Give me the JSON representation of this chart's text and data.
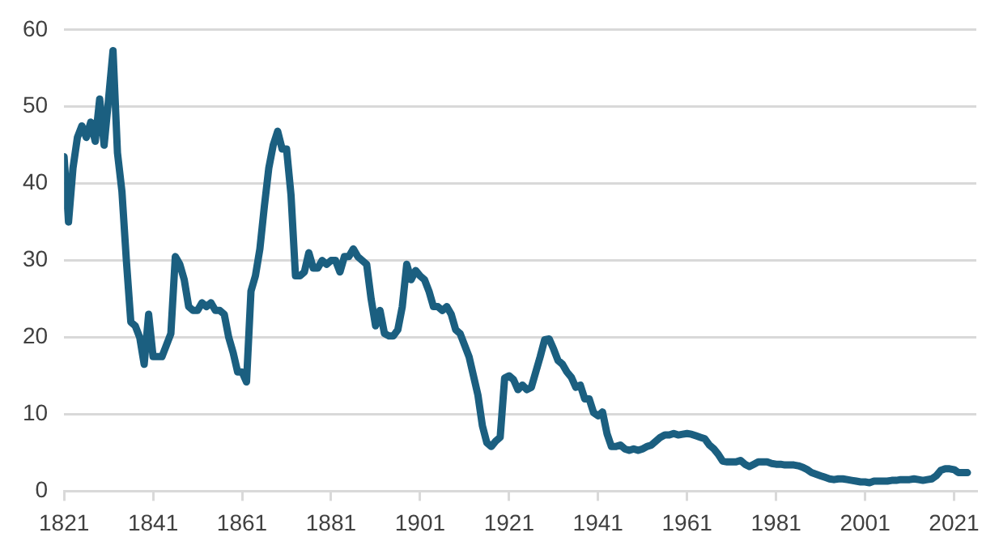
{
  "chart_data": {
    "type": "line",
    "x": [
      1821,
      1822,
      1823,
      1824,
      1825,
      1826,
      1827,
      1828,
      1829,
      1830,
      1831,
      1832,
      1833,
      1834,
      1835,
      1836,
      1837,
      1838,
      1839,
      1840,
      1841,
      1842,
      1843,
      1844,
      1845,
      1846,
      1847,
      1848,
      1849,
      1850,
      1851,
      1852,
      1853,
      1854,
      1855,
      1856,
      1857,
      1858,
      1859,
      1860,
      1861,
      1862,
      1863,
      1864,
      1865,
      1866,
      1867,
      1868,
      1869,
      1870,
      1871,
      1872,
      1873,
      1874,
      1875,
      1876,
      1877,
      1878,
      1879,
      1880,
      1881,
      1882,
      1883,
      1884,
      1885,
      1886,
      1887,
      1888,
      1889,
      1890,
      1891,
      1892,
      1893,
      1894,
      1895,
      1896,
      1897,
      1898,
      1899,
      1900,
      1901,
      1902,
      1903,
      1904,
      1905,
      1906,
      1907,
      1908,
      1909,
      1910,
      1911,
      1912,
      1913,
      1914,
      1915,
      1916,
      1917,
      1918,
      1919,
      1920,
      1921,
      1922,
      1923,
      1924,
      1925,
      1926,
      1927,
      1928,
      1929,
      1930,
      1931,
      1932,
      1933,
      1934,
      1935,
      1936,
      1937,
      1938,
      1939,
      1940,
      1941,
      1942,
      1943,
      1944,
      1945,
      1946,
      1947,
      1948,
      1949,
      1950,
      1951,
      1952,
      1953,
      1954,
      1955,
      1956,
      1957,
      1958,
      1959,
      1960,
      1961,
      1962,
      1963,
      1964,
      1965,
      1966,
      1967,
      1968,
      1969,
      1970,
      1971,
      1972,
      1973,
      1974,
      1975,
      1976,
      1977,
      1978,
      1979,
      1980,
      1981,
      1982,
      1983,
      1984,
      1985,
      1986,
      1987,
      1988,
      1989,
      1990,
      1991,
      1992,
      1993,
      1994,
      1995,
      1996,
      1997,
      1998,
      1999,
      2000,
      2001,
      2002,
      2003,
      2004,
      2005,
      2006,
      2007,
      2008,
      2009,
      2010,
      2011,
      2012,
      2013,
      2014,
      2015,
      2016,
      2017,
      2018,
      2019,
      2020,
      2021,
      2022,
      2023,
      2024
    ],
    "series": [
      {
        "color": "#1b5f80",
        "values": [
          43.5,
          35,
          42,
          46,
          47.5,
          46,
          48,
          45.5,
          51,
          45,
          51,
          57.3,
          44,
          39,
          30,
          22,
          21.5,
          20,
          16.5,
          23,
          17.5,
          17.5,
          17.5,
          19,
          20.5,
          30.5,
          29.5,
          27.5,
          24,
          23.5,
          23.5,
          24.5,
          24,
          24.5,
          23.5,
          23.5,
          23,
          20,
          18,
          15.5,
          15.5,
          14.2,
          26,
          28,
          31.5,
          37,
          42,
          45,
          46.8,
          44.5,
          44.5,
          38.5,
          28,
          28,
          28.5,
          31,
          29,
          29,
          30,
          29.5,
          30,
          30,
          28.5,
          30.5,
          30.5,
          31.5,
          30.5,
          30,
          29.5,
          25,
          21.5,
          23.5,
          20.5,
          20.2,
          20.2,
          21,
          24,
          29.5,
          27.5,
          28.7,
          28,
          27.5,
          26,
          24,
          24,
          23.5,
          24,
          23,
          21,
          20.5,
          19,
          17.5,
          15,
          12.5,
          8.5,
          6.3,
          5.8,
          6.5,
          7,
          14.7,
          15,
          14.5,
          13.2,
          13.8,
          13.2,
          13.5,
          15.5,
          17.5,
          19.7,
          19.8,
          18.5,
          17,
          16.5,
          15.5,
          14.8,
          13.5,
          13.8,
          12,
          12,
          10.2,
          9.8,
          10.3,
          7.5,
          5.8,
          5.8,
          6,
          5.5,
          5.3,
          5.5,
          5.3,
          5.5,
          5.8,
          6,
          6.5,
          7,
          7.3,
          7.3,
          7.5,
          7.3,
          7.4,
          7.5,
          7.4,
          7.2,
          7,
          6.8,
          6,
          5.5,
          4.8,
          3.9,
          3.8,
          3.8,
          3.8,
          4,
          3.5,
          3.2,
          3.5,
          3.8,
          3.8,
          3.8,
          3.6,
          3.5,
          3.5,
          3.4,
          3.4,
          3.4,
          3.3,
          3.1,
          2.8,
          2.4,
          2.2,
          2,
          1.8,
          1.6,
          1.5,
          1.6,
          1.6,
          1.5,
          1.4,
          1.3,
          1.2,
          1.2,
          1.1,
          1.3,
          1.3,
          1.3,
          1.3,
          1.4,
          1.4,
          1.5,
          1.5,
          1.5,
          1.6,
          1.5,
          1.4,
          1.5,
          1.6,
          2,
          2.7,
          2.9,
          2.9,
          2.8,
          2.4,
          2.4,
          2.4
        ]
      }
    ],
    "xlim": [
      1821,
      2026
    ],
    "xticks": [
      1821,
      1841,
      1861,
      1881,
      1901,
      1921,
      1941,
      1961,
      1981,
      2001,
      2021
    ],
    "ylim": [
      0,
      60
    ],
    "yticks": [
      0,
      10,
      20,
      30,
      40,
      50,
      60
    ],
    "grid": "y",
    "legend": false,
    "marker": "none",
    "line_style": "solid"
  }
}
